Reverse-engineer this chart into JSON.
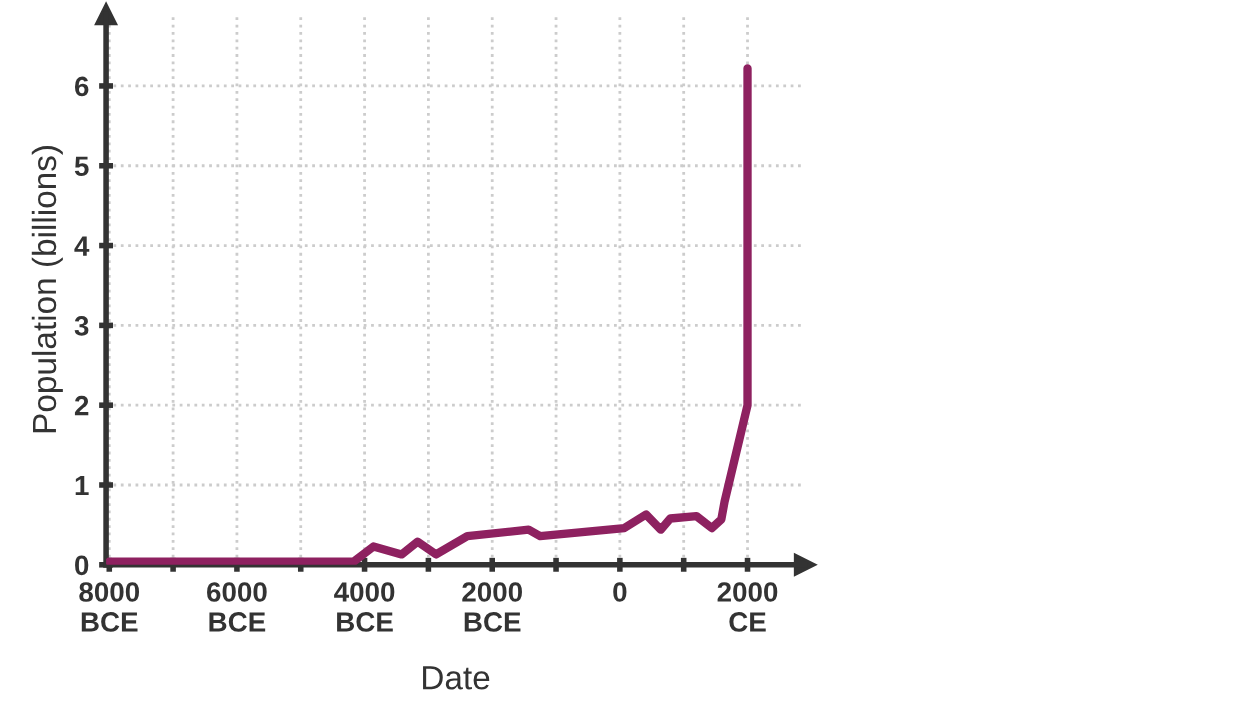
{
  "chart_data": {
    "type": "line",
    "xlabel": "Date",
    "ylabel": "Population (billions)",
    "xlim": [
      -8050,
      2900
    ],
    "ylim": [
      0,
      6.9
    ],
    "xticks": [
      {
        "value": -8000,
        "label": "8000\nBCE"
      },
      {
        "value": -7000,
        "label": null
      },
      {
        "value": -6000,
        "label": "6000\nBCE"
      },
      {
        "value": -5000,
        "label": null
      },
      {
        "value": -4000,
        "label": "4000\nBCE"
      },
      {
        "value": -3000,
        "label": null
      },
      {
        "value": -2000,
        "label": "2000\nBCE"
      },
      {
        "value": -1000,
        "label": null
      },
      {
        "value": 0,
        "label": "0"
      },
      {
        "value": 1000,
        "label": null
      },
      {
        "value": 2000,
        "label": "2000\nCE"
      }
    ],
    "yticks": [
      0,
      1,
      2,
      3,
      4,
      5,
      6
    ],
    "grid": true,
    "line_style": "solid",
    "marker": "none",
    "series": [
      {
        "color": "#8e2160",
        "x": [
          -8000,
          -4170,
          -3860,
          -3420,
          -3170,
          -2880,
          -2390,
          -1430,
          -1250,
          70,
          410,
          640,
          790,
          1200,
          1440,
          1590,
          1640,
          2000,
          2000
        ],
        "values": [
          0.04,
          0.04,
          0.23,
          0.13,
          0.29,
          0.13,
          0.36,
          0.44,
          0.36,
          0.46,
          0.63,
          0.44,
          0.58,
          0.61,
          0.46,
          0.57,
          0.79,
          2.0,
          6.22
        ]
      }
    ]
  }
}
